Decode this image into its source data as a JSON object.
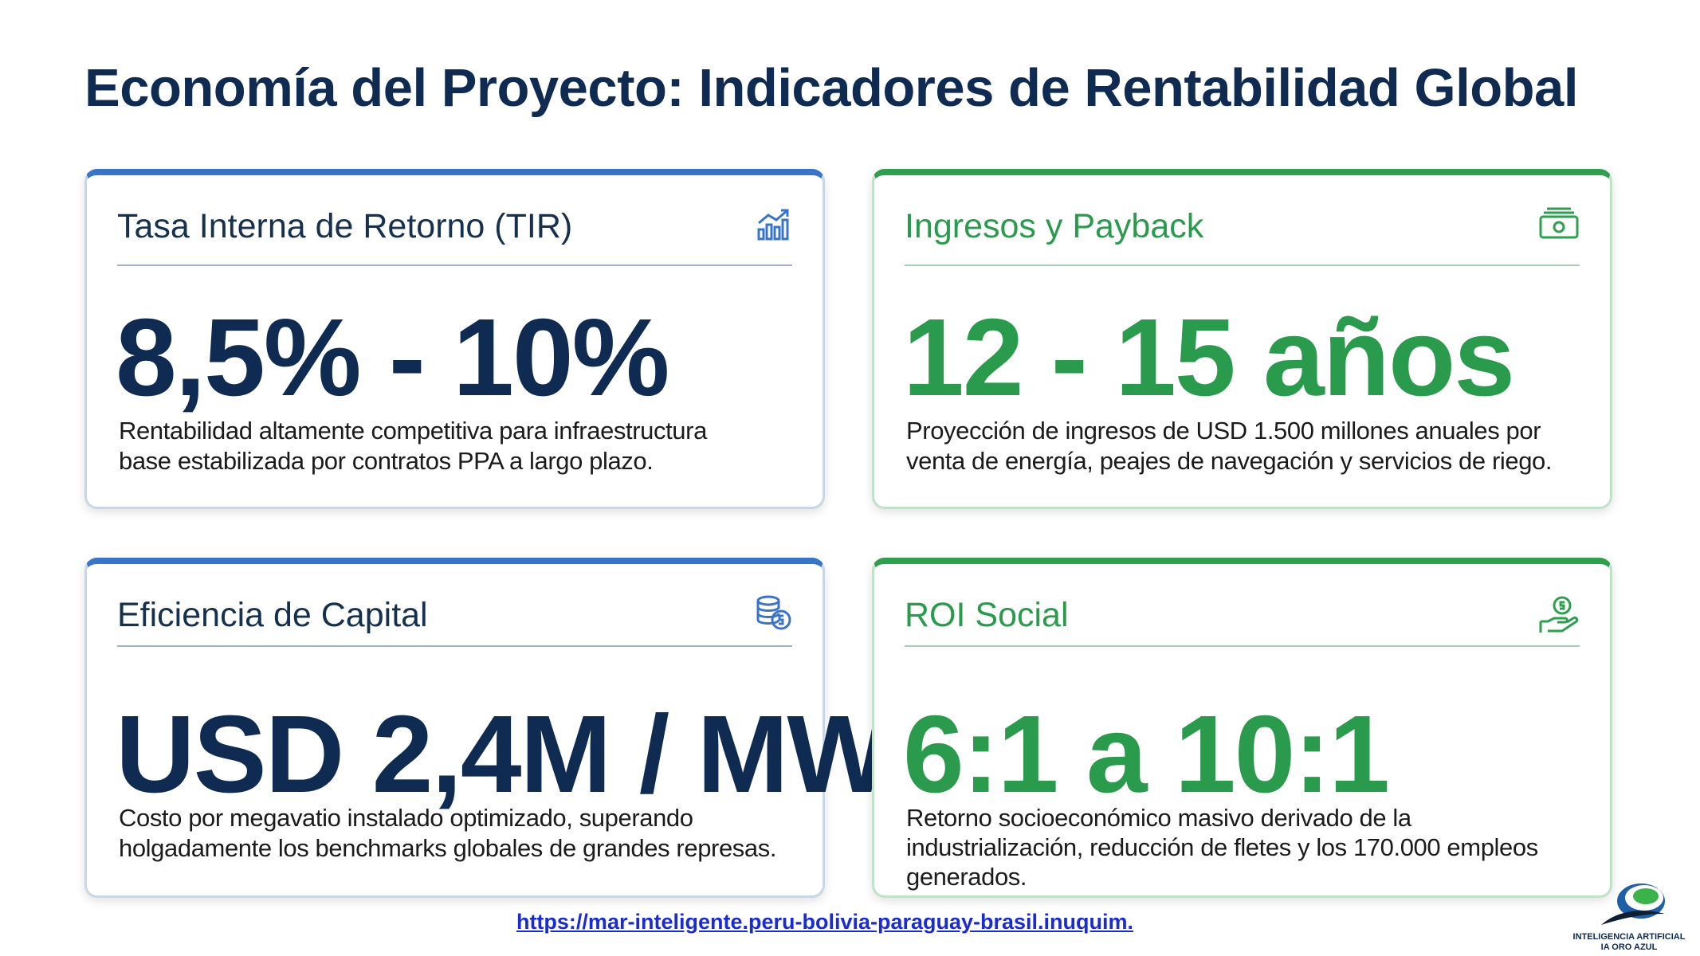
{
  "header": {
    "title": "Economía del Proyecto: Indicadores de Rentabilidad Global"
  },
  "cards": [
    {
      "title": "Tasa Interna de Retorno (TIR)",
      "value": "8,5% - 10%",
      "description": [
        "Rentabilidad altamente competitiva para infraestructura",
        "base estabilizada por contratos PPA a largo plazo."
      ]
    },
    {
      "title": "Ingresos y Payback",
      "value": "12 - 15 años",
      "description": [
        "Proyección de ingresos de USD 1.500 millones anuales por",
        "venta de energía, peajes de navegación y servicios de riego."
      ]
    },
    {
      "title": "Eficiencia de Capital",
      "value": "USD 2,4M / MW",
      "description": [
        "Costo por megavatio instalado optimizado, superando",
        "holgadamente los benchmarks globales de grandes represas."
      ]
    },
    {
      "title": "ROI Social",
      "value": "6:1 a 10:1",
      "description": [
        "Retorno socioeconómico masivo derivado de la",
        "industrialización, reducción de fletes y los 170.000 empleos",
        "generados."
      ]
    }
  ],
  "footer": {
    "link": "https://mar-inteligente.peru-bolivia-paraguay-brasil.inuquim.",
    "logo_text": [
      "INTELIGENCIA ARTIFICIAL",
      "IA ORO AZUL"
    ]
  }
}
